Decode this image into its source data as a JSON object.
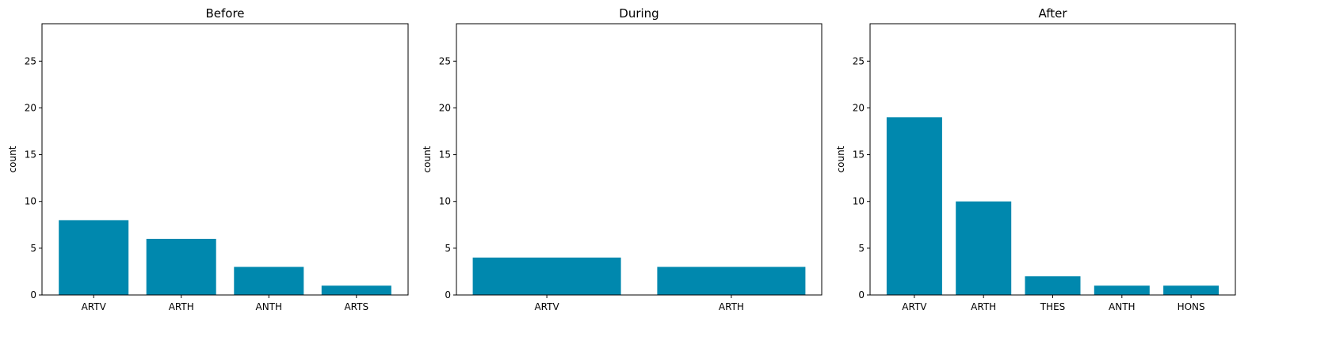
{
  "chart_data": [
    {
      "type": "bar",
      "title": "Before",
      "xlabel": "",
      "ylabel": "count",
      "categories": [
        "ARTV",
        "ARTH",
        "ANTH",
        "ARTS"
      ],
      "values": [
        8,
        6,
        3,
        1
      ],
      "ylim": [
        0,
        29
      ],
      "yticks": [
        0,
        5,
        10,
        15,
        20,
        25
      ],
      "grid": false,
      "color": "#0088ae"
    },
    {
      "type": "bar",
      "title": "During",
      "xlabel": "",
      "ylabel": "count",
      "categories": [
        "ARTV",
        "ARTH"
      ],
      "values": [
        4,
        3
      ],
      "ylim": [
        0,
        29
      ],
      "yticks": [
        0,
        5,
        10,
        15,
        20,
        25
      ],
      "grid": false,
      "color": "#0088ae"
    },
    {
      "type": "bar",
      "title": "After",
      "xlabel": "",
      "ylabel": "count",
      "categories": [
        "ARTV",
        "ARTH",
        "THES",
        "ANTH",
        "HONS"
      ],
      "values": [
        19,
        10,
        2,
        1,
        1
      ],
      "ylim": [
        0,
        29
      ],
      "yticks": [
        0,
        5,
        10,
        15,
        20,
        25
      ],
      "grid": false,
      "color": "#0088ae"
    }
  ]
}
